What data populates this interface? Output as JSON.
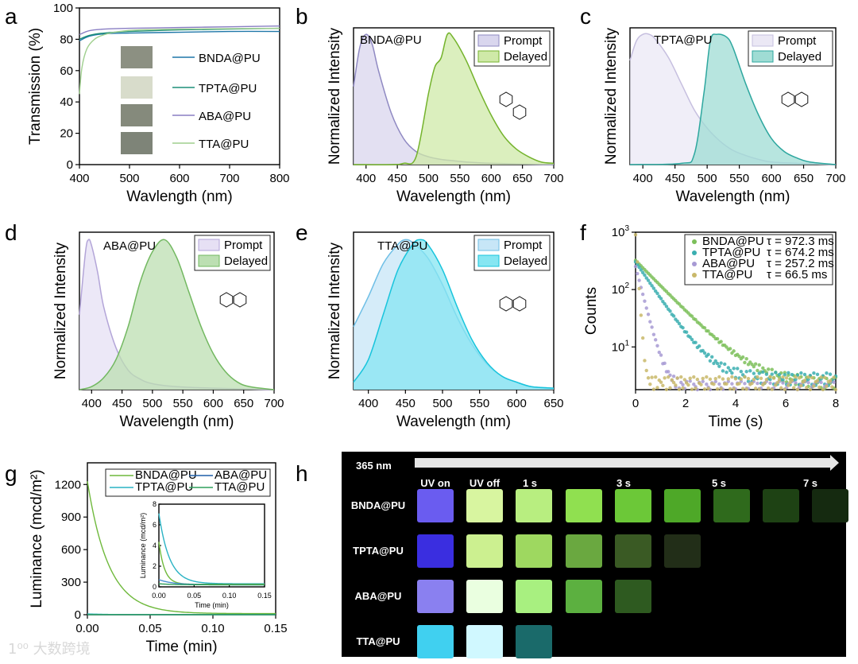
{
  "panel_letters": [
    "a",
    "b",
    "c",
    "d",
    "e",
    "f",
    "g",
    "h"
  ],
  "watermark": "大数跨境",
  "chart_data": [
    {
      "id": "a",
      "type": "line",
      "xlabel": "Wavlength (nm)",
      "ylabel": "Transmission (%)",
      "xlim": [
        400,
        800
      ],
      "ylim": [
        0,
        100
      ],
      "xticks": [
        400,
        500,
        600,
        700,
        800
      ],
      "yticks": [
        0,
        20,
        40,
        60,
        80,
        100
      ],
      "legend": "center-right",
      "series": [
        {
          "name": "BNDA@PU",
          "color": "#1f77a8",
          "x": [
            400,
            420,
            450,
            500,
            600,
            700,
            800
          ],
          "y": [
            79,
            82,
            83.5,
            84,
            84.5,
            85,
            85
          ]
        },
        {
          "name": "TPTA@PU",
          "color": "#1d8f78",
          "x": [
            400,
            420,
            450,
            500,
            600,
            700,
            800
          ],
          "y": [
            80,
            82.5,
            84,
            85,
            86,
            86.5,
            87
          ]
        },
        {
          "name": "ABA@PU",
          "color": "#8a7fc4",
          "x": [
            400,
            420,
            450,
            500,
            600,
            700,
            800
          ],
          "y": [
            83,
            85.5,
            86.5,
            87,
            87.5,
            88,
            88.5
          ]
        },
        {
          "name": "TTA@PU",
          "color": "#9fcf8e",
          "x": [
            400,
            405,
            415,
            430,
            450,
            480,
            520,
            600,
            800
          ],
          "y": [
            45,
            62,
            74,
            80,
            83,
            85,
            86,
            86.5,
            87
          ]
        }
      ]
    },
    {
      "id": "b",
      "type": "area",
      "title": "BNDA@PU",
      "xlabel": "Wavelength (nm)",
      "ylabel": "Normalized Intensity",
      "xlim": [
        380,
        700
      ],
      "ylim": [
        0,
        1.05
      ],
      "xticks": [
        400,
        450,
        500,
        550,
        600,
        650,
        700
      ],
      "legend": "top-right",
      "series": [
        {
          "name": "Prompt",
          "color": "#8f89c2",
          "fill": "#d9d6ee",
          "x": [
            380,
            390,
            400,
            410,
            420,
            440,
            460,
            480,
            500,
            520,
            540,
            560,
            600,
            700
          ],
          "y": [
            0.6,
            0.9,
            1.0,
            0.92,
            0.72,
            0.4,
            0.2,
            0.1,
            0.06,
            0.04,
            0.03,
            0.02,
            0.01,
            0
          ]
        },
        {
          "name": "Delayed",
          "color": "#74b32c",
          "fill": "#cfe9a8",
          "x": [
            380,
            440,
            460,
            480,
            500,
            510,
            520,
            530,
            540,
            560,
            580,
            600,
            620,
            640,
            660,
            680,
            700
          ],
          "y": [
            0,
            0,
            0.01,
            0.06,
            0.55,
            0.75,
            0.82,
            1.0,
            0.97,
            0.8,
            0.58,
            0.38,
            0.22,
            0.12,
            0.06,
            0.02,
            0.01
          ]
        }
      ]
    },
    {
      "id": "c",
      "type": "area",
      "title": "TPTA@PU",
      "xlabel": "Wavelength (nm)",
      "ylabel": "Normalized Intensity",
      "xlim": [
        380,
        700
      ],
      "ylim": [
        0,
        1.05
      ],
      "xticks": [
        400,
        450,
        500,
        550,
        600,
        650,
        700
      ],
      "legend": "top-right",
      "series": [
        {
          "name": "Prompt",
          "color": "#c6bfdf",
          "fill": "#ebe8f5",
          "x": [
            380,
            390,
            400,
            410,
            420,
            440,
            460,
            480,
            500,
            520,
            540,
            560,
            580,
            600,
            640,
            700
          ],
          "y": [
            0.8,
            0.95,
            1.0,
            1.0,
            0.96,
            0.82,
            0.62,
            0.42,
            0.28,
            0.18,
            0.11,
            0.07,
            0.04,
            0.02,
            0.01,
            0
          ]
        },
        {
          "name": "Delayed",
          "color": "#2ea79f",
          "fill": "#9fdcd4",
          "x": [
            380,
            460,
            480,
            495,
            505,
            515,
            530,
            540,
            560,
            580,
            600,
            620,
            640,
            660,
            700
          ],
          "y": [
            0,
            0.01,
            0.08,
            0.55,
            0.95,
            1.0,
            0.98,
            0.9,
            0.62,
            0.38,
            0.2,
            0.1,
            0.05,
            0.02,
            0
          ]
        }
      ]
    },
    {
      "id": "d",
      "type": "area",
      "title": "ABA@PU",
      "xlabel": "Wavelength (nm)",
      "ylabel": "Normalized Intensity",
      "xlim": [
        380,
        700
      ],
      "ylim": [
        0,
        1.05
      ],
      "xticks": [
        400,
        450,
        500,
        550,
        600,
        650,
        700
      ],
      "legend": "top-right",
      "series": [
        {
          "name": "Prompt",
          "color": "#b3a5d8",
          "fill": "#e6e0f4",
          "x": [
            380,
            390,
            395,
            400,
            410,
            420,
            440,
            460,
            480,
            500,
            540,
            600,
            700
          ],
          "y": [
            0.5,
            0.92,
            1.0,
            0.96,
            0.78,
            0.55,
            0.28,
            0.13,
            0.07,
            0.04,
            0.02,
            0.01,
            0
          ]
        },
        {
          "name": "Delayed",
          "color": "#72b860",
          "fill": "#bcdfb2",
          "x": [
            380,
            400,
            420,
            440,
            460,
            480,
            500,
            520,
            540,
            560,
            580,
            600,
            620,
            640,
            660,
            700
          ],
          "y": [
            0,
            0.02,
            0.08,
            0.2,
            0.42,
            0.72,
            0.92,
            1.0,
            0.88,
            0.65,
            0.42,
            0.24,
            0.12,
            0.05,
            0.02,
            0
          ]
        }
      ]
    },
    {
      "id": "e",
      "type": "area",
      "title": "TTA@PU",
      "xlabel": "Wavelength (nm)",
      "ylabel": "Normalized Intensity",
      "xlim": [
        380,
        650
      ],
      "ylim": [
        0,
        1.05
      ],
      "xticks": [
        400,
        450,
        500,
        550,
        600,
        650
      ],
      "legend": "top-right",
      "series": [
        {
          "name": "Prompt",
          "color": "#6fbfe6",
          "fill": "#c7e6f7",
          "x": [
            380,
            400,
            420,
            440,
            450,
            460,
            480,
            500,
            520,
            540,
            560,
            580,
            600,
            620,
            650
          ],
          "y": [
            0.42,
            0.62,
            0.84,
            0.97,
            1.0,
            0.98,
            0.88,
            0.7,
            0.48,
            0.3,
            0.17,
            0.09,
            0.05,
            0.02,
            0.01
          ]
        },
        {
          "name": "Delayed",
          "color": "#18c4dc",
          "fill": "#86e6f2",
          "x": [
            380,
            400,
            420,
            440,
            460,
            470,
            480,
            500,
            520,
            540,
            560,
            580,
            600,
            620,
            650
          ],
          "y": [
            0.05,
            0.2,
            0.5,
            0.8,
            0.97,
            1.0,
            0.97,
            0.8,
            0.55,
            0.33,
            0.18,
            0.09,
            0.05,
            0.02,
            0.01
          ]
        }
      ]
    },
    {
      "id": "f",
      "type": "scatter",
      "xlabel": "Time (s)",
      "ylabel": "Counts",
      "xlim": [
        0,
        8
      ],
      "ylim": [
        1.8,
        1000
      ],
      "yscale": "log",
      "xticks": [
        0,
        2,
        4,
        6,
        8
      ],
      "yticks": [
        10,
        100,
        1000
      ],
      "ytick_labels": [
        [
          "10",
          "1"
        ],
        [
          "10",
          "2"
        ],
        [
          "10",
          "3"
        ]
      ],
      "legend": "top-right",
      "series": [
        {
          "name": "BNDA@PU",
          "tau_label": "τ = 972.3 ms",
          "tau_s": 0.9723,
          "amplitude": 320,
          "baseline": 2.3,
          "color": "#7cbf5a"
        },
        {
          "name": "TPTA@PU",
          "tau_label": "τ = 674.2 ms",
          "tau_s": 0.6742,
          "amplitude": 300,
          "baseline": 2.8,
          "color": "#3aaeb0"
        },
        {
          "name": "ABA@PU",
          "tau_label": "τ = 257.2 ms",
          "tau_s": 0.2572,
          "amplitude": 250,
          "baseline": 2.0,
          "color": "#a79ad4"
        },
        {
          "name": "TTA@PU",
          "tau_label": "τ = 66.5 ms",
          "tau_s": 0.0665,
          "amplitude": 900,
          "baseline": 2.4,
          "color": "#c9b86a"
        }
      ]
    },
    {
      "id": "g",
      "type": "line",
      "xlabel": "Time (min)",
      "ylabel": "Luminance (mcd/m²)",
      "xlim": [
        0,
        0.15
      ],
      "ylim": [
        0,
        1400
      ],
      "xticks": [
        0,
        0.05,
        0.1,
        0.15
      ],
      "xtick_labels": [
        "0.00",
        "0.05",
        "0.10",
        "0.15"
      ],
      "yticks": [
        0,
        300,
        600,
        900,
        1200
      ],
      "legend": "top",
      "series": [
        {
          "name": "BNDA@PU",
          "color": "#6fb93c",
          "amplitude": 1220,
          "tau_min": 0.017,
          "baseline": 10
        },
        {
          "name": "ABA@PU",
          "color": "#1f5fa8",
          "amplitude": 0.7,
          "tau_min": 0.02,
          "baseline": 0.2
        },
        {
          "name": "TPTA@PU",
          "color": "#2ab3c4",
          "amplitude": 7,
          "tau_min": 0.015,
          "baseline": 0.3
        },
        {
          "name": "TTA@PU",
          "color": "#2f9f5c",
          "amplitude": 0.1,
          "tau_min": 0.02,
          "baseline": 0.25
        }
      ],
      "inset": {
        "xlabel": "Time (min)",
        "ylabel": "Luminance (mcd/m²)",
        "xlim": [
          0,
          0.15
        ],
        "ylim": [
          0,
          8
        ],
        "xticks": [
          0,
          0.05,
          0.1,
          0.15
        ],
        "xtick_labels": [
          "0.00",
          "0.05",
          "0.10",
          "0.15"
        ],
        "yticks": [
          0,
          2,
          4,
          6,
          8
        ],
        "series": [
          {
            "name": "TPTA@PU",
            "color": "#2ab3c4",
            "amplitude": 6.8,
            "tau_min": 0.015,
            "baseline": 0.3
          },
          {
            "name": "BNDA@PU",
            "color": "#6fb93c",
            "amplitude": 4.1,
            "tau_min": 0.008,
            "baseline": 0.25
          },
          {
            "name": "ABA@PU",
            "color": "#4a8fd0",
            "amplitude": 0.5,
            "tau_min": 0.02,
            "baseline": 0.2
          },
          {
            "name": "TTA@PU",
            "color": "#2f9f5c",
            "amplitude": 0.1,
            "tau_min": 0.02,
            "baseline": 0.2
          }
        ]
      }
    },
    {
      "id": "h",
      "type": "table",
      "excitation": "365 nm",
      "columns": [
        "UV on",
        "UV off",
        "1 s",
        "3 s",
        "5 s",
        "7 s"
      ],
      "rows": [
        {
          "name": "BNDA@PU",
          "colors": [
            "#6a5cf0",
            "#d8f5a0",
            "#b8ee80",
            "#90e050",
            "#6cc838",
            "#4ea828",
            "#2f6a1c",
            "#1e4214",
            "#152a10"
          ]
        },
        {
          "name": "TPTA@PU",
          "colors": [
            "#3a2ee0",
            "#ccf090",
            "#9ed860",
            "#6aa840",
            "#3a5a24",
            "#222e18"
          ]
        },
        {
          "name": "ABA@PU",
          "colors": [
            "#8a80f0",
            "#eaffe0",
            "#a8f080",
            "#5cb040",
            "#2e5a20"
          ]
        },
        {
          "name": "TTA@PU",
          "colors": [
            "#40d0f0",
            "#d0f8ff",
            "#1a6a6a"
          ]
        }
      ]
    }
  ]
}
